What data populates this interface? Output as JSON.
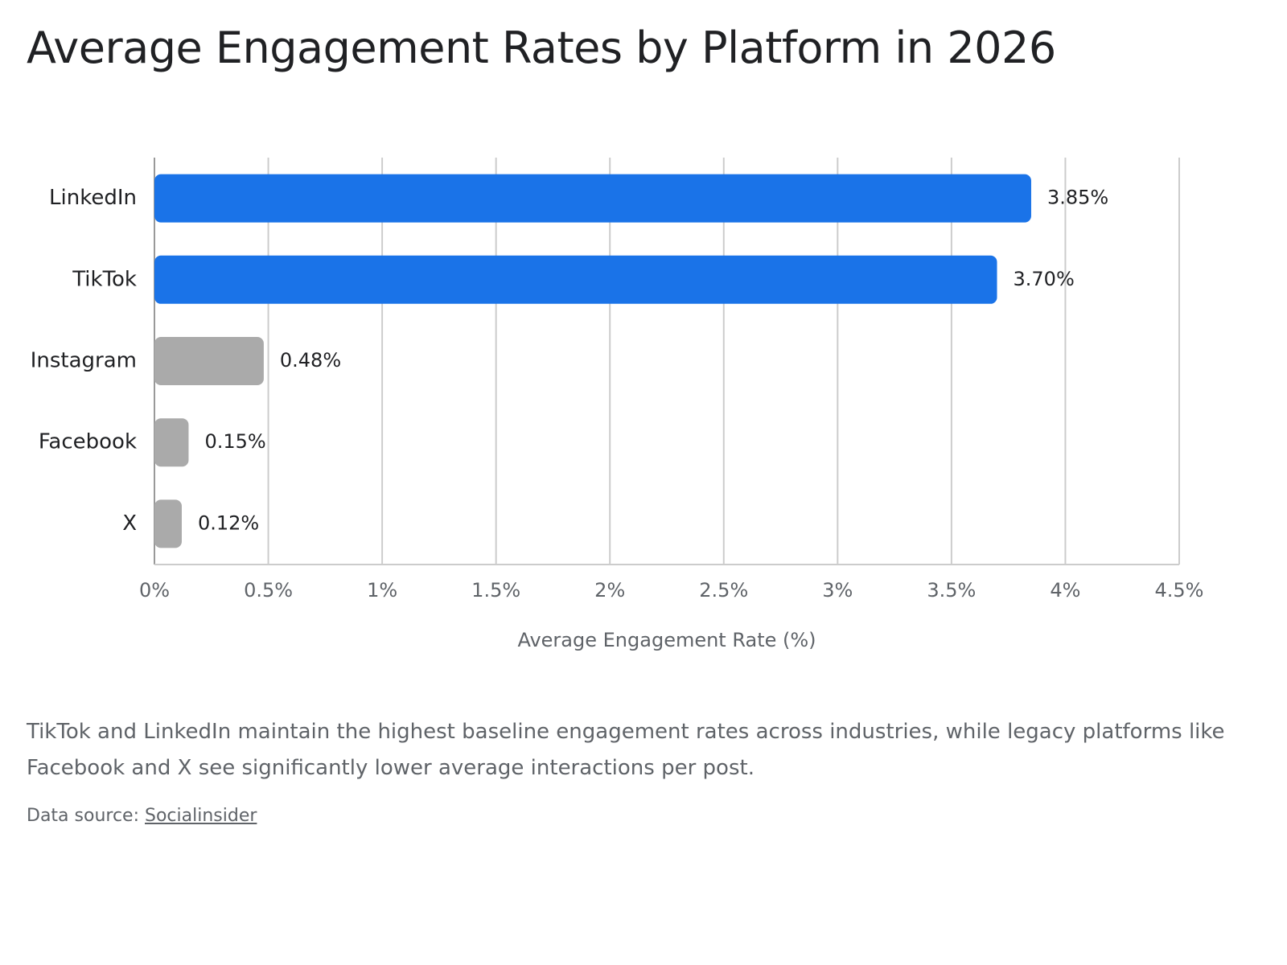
{
  "chart_data": {
    "type": "hbar",
    "title": "Average Engagement Rates by Platform in 2026",
    "categories": [
      "LinkedIn",
      "TikTok",
      "Instagram",
      "Facebook",
      "X"
    ],
    "values": [
      3.85,
      3.7,
      0.48,
      0.15,
      0.12
    ],
    "value_labels": [
      "3.85%",
      "3.70%",
      "0.48%",
      "0.15%",
      "0.12%"
    ],
    "colors": [
      "#1a73e8",
      "#1a73e8",
      "#aaaaaa",
      "#aaaaaa",
      "#aaaaaa"
    ],
    "xlim": [
      0,
      4.5
    ],
    "xticks": [
      {
        "value": 0,
        "label": "0%"
      },
      {
        "value": 0.5,
        "label": "0.5%"
      },
      {
        "value": 1,
        "label": "1%"
      },
      {
        "value": 1.5,
        "label": "1.5%"
      },
      {
        "value": 2,
        "label": "2%"
      },
      {
        "value": 2.5,
        "label": "2.5%"
      },
      {
        "value": 3,
        "label": "3%"
      },
      {
        "value": 3.5,
        "label": "3.5%"
      },
      {
        "value": 4,
        "label": "4%"
      },
      {
        "value": 4.5,
        "label": "4.5%"
      }
    ],
    "x_label": "Average Engagement Rate (%)",
    "grid": true
  },
  "caption": "TikTok and LinkedIn maintain the highest baseline engagement rates across industries, while legacy platforms like Facebook and X see significantly lower average interactions per post.",
  "source": {
    "label": "Data source:",
    "link": "Socialinsider"
  }
}
